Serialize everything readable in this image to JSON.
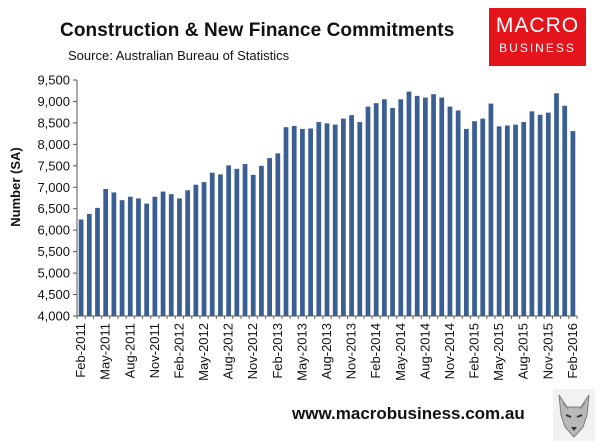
{
  "header": {
    "title": "Construction & New Finance Commitments",
    "subtitle": "Source: Australian Bureau of Statistics"
  },
  "brand": {
    "logo_line1": "MACRO",
    "logo_line2": "BUSINESS",
    "logo_color": "#e3141b",
    "website": "www.macrobusiness.com.au",
    "mascot_icon": "wolf-icon"
  },
  "chart_data": {
    "type": "bar",
    "ylabel": "Number (SA)",
    "xlabel": "",
    "ylim": [
      4000,
      9500
    ],
    "yticks": [
      "4,000",
      "4,500",
      "5,000",
      "5,500",
      "6,000",
      "6,500",
      "7,000",
      "7,500",
      "8,000",
      "8,500",
      "9,000",
      "9,500"
    ],
    "xticks": [
      "Feb-2011",
      "May-2011",
      "Aug-2011",
      "Nov-2011",
      "Feb-2012",
      "May-2012",
      "Aug-2012",
      "Nov-2012",
      "Feb-2013",
      "May-2013",
      "Aug-2013",
      "Nov-2013",
      "Feb-2014",
      "May-2014",
      "Aug-2014",
      "Nov-2014",
      "Feb-2015",
      "May-2015",
      "Aug-2015",
      "Nov-2015",
      "Feb-2016"
    ],
    "bar_color": "#3b5f93",
    "grid": false,
    "categories": [
      "Feb-2011",
      "Mar-2011",
      "Apr-2011",
      "May-2011",
      "Jun-2011",
      "Jul-2011",
      "Aug-2011",
      "Sep-2011",
      "Oct-2011",
      "Nov-2011",
      "Dec-2011",
      "Jan-2012",
      "Feb-2012",
      "Mar-2012",
      "Apr-2012",
      "May-2012",
      "Jun-2012",
      "Jul-2012",
      "Aug-2012",
      "Sep-2012",
      "Oct-2012",
      "Nov-2012",
      "Dec-2012",
      "Jan-2013",
      "Feb-2013",
      "Mar-2013",
      "Apr-2013",
      "May-2013",
      "Jun-2013",
      "Jul-2013",
      "Aug-2013",
      "Sep-2013",
      "Oct-2013",
      "Nov-2013",
      "Dec-2013",
      "Jan-2014",
      "Feb-2014",
      "Mar-2014",
      "Apr-2014",
      "May-2014",
      "Jun-2014",
      "Jul-2014",
      "Aug-2014",
      "Sep-2014",
      "Oct-2014",
      "Nov-2014",
      "Dec-2014",
      "Jan-2015",
      "Feb-2015",
      "Mar-2015",
      "Apr-2015",
      "May-2015",
      "Jun-2015",
      "Jul-2015",
      "Aug-2015",
      "Sep-2015",
      "Oct-2015",
      "Nov-2015",
      "Dec-2015",
      "Jan-2016",
      "Feb-2016"
    ],
    "values": [
      6250,
      6380,
      6520,
      6960,
      6880,
      6700,
      6780,
      6740,
      6620,
      6780,
      6900,
      6840,
      6740,
      6930,
      7060,
      7120,
      7340,
      7300,
      7510,
      7430,
      7540,
      7290,
      7500,
      7680,
      7790,
      8400,
      8430,
      8360,
      8370,
      8520,
      8490,
      8460,
      8600,
      8680,
      8520,
      8880,
      8960,
      9050,
      8850,
      9050,
      9230,
      9130,
      9090,
      9170,
      9090,
      8880,
      8790,
      8360,
      8540,
      8600,
      8950,
      8420,
      8440,
      8460,
      8520,
      8770,
      8690,
      8740,
      9190,
      8900,
      8310
    ]
  }
}
